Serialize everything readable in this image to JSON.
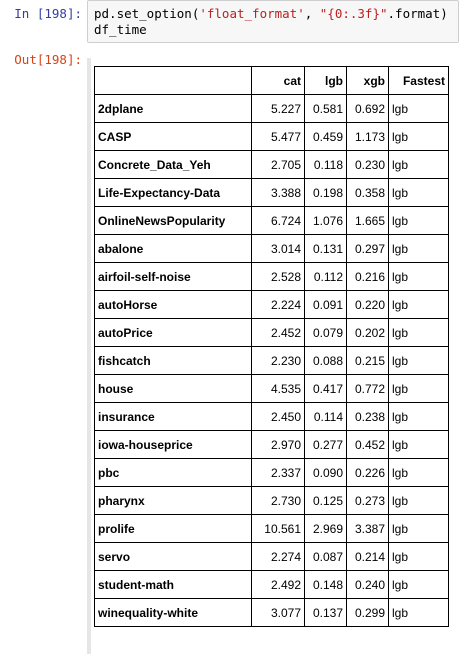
{
  "input_cell": {
    "prompt": "In [198]:",
    "code": {
      "fn": "pd.set_option(",
      "arg1": "'float_format'",
      "sep": ", ",
      "arg2": "\"{0:.3f}\"",
      "tail": ".format)",
      "line2": "df_time"
    }
  },
  "output_cell": {
    "prompt": "Out[198]:",
    "table": {
      "headers": [
        "",
        "cat",
        "lgb",
        "xgb",
        "Fastest"
      ],
      "rows": [
        {
          "name": "2dplane",
          "cat": "5.227",
          "lgb": "0.581",
          "xgb": "0.692",
          "fastest": "lgb"
        },
        {
          "name": "CASP",
          "cat": "5.477",
          "lgb": "0.459",
          "xgb": "1.173",
          "fastest": "lgb"
        },
        {
          "name": "Concrete_Data_Yeh",
          "cat": "2.705",
          "lgb": "0.118",
          "xgb": "0.230",
          "fastest": "lgb"
        },
        {
          "name": "Life-Expectancy-Data",
          "cat": "3.388",
          "lgb": "0.198",
          "xgb": "0.358",
          "fastest": "lgb"
        },
        {
          "name": "OnlineNewsPopularity",
          "cat": "6.724",
          "lgb": "1.076",
          "xgb": "1.665",
          "fastest": "lgb"
        },
        {
          "name": "abalone",
          "cat": "3.014",
          "lgb": "0.131",
          "xgb": "0.297",
          "fastest": "lgb"
        },
        {
          "name": "airfoil-self-noise",
          "cat": "2.528",
          "lgb": "0.112",
          "xgb": "0.216",
          "fastest": "lgb"
        },
        {
          "name": "autoHorse",
          "cat": "2.224",
          "lgb": "0.091",
          "xgb": "0.220",
          "fastest": "lgb"
        },
        {
          "name": "autoPrice",
          "cat": "2.452",
          "lgb": "0.079",
          "xgb": "0.202",
          "fastest": "lgb"
        },
        {
          "name": "fishcatch",
          "cat": "2.230",
          "lgb": "0.088",
          "xgb": "0.215",
          "fastest": "lgb"
        },
        {
          "name": "house",
          "cat": "4.535",
          "lgb": "0.417",
          "xgb": "0.772",
          "fastest": "lgb"
        },
        {
          "name": "insurance",
          "cat": "2.450",
          "lgb": "0.114",
          "xgb": "0.238",
          "fastest": "lgb"
        },
        {
          "name": "iowa-houseprice",
          "cat": "2.970",
          "lgb": "0.277",
          "xgb": "0.452",
          "fastest": "lgb"
        },
        {
          "name": "pbc",
          "cat": "2.337",
          "lgb": "0.090",
          "xgb": "0.226",
          "fastest": "lgb"
        },
        {
          "name": "pharynx",
          "cat": "2.730",
          "lgb": "0.125",
          "xgb": "0.273",
          "fastest": "lgb"
        },
        {
          "name": "prolife",
          "cat": "10.561",
          "lgb": "2.969",
          "xgb": "3.387",
          "fastest": "lgb"
        },
        {
          "name": "servo",
          "cat": "2.274",
          "lgb": "0.087",
          "xgb": "0.214",
          "fastest": "lgb"
        },
        {
          "name": "student-math",
          "cat": "2.492",
          "lgb": "0.148",
          "xgb": "0.240",
          "fastest": "lgb"
        },
        {
          "name": "winequality-white",
          "cat": "3.077",
          "lgb": "0.137",
          "xgb": "0.299",
          "fastest": "lgb"
        }
      ]
    }
  }
}
